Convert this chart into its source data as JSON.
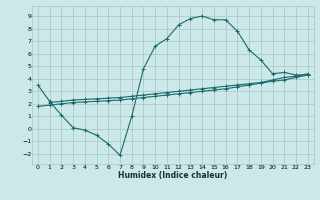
{
  "xlabel": "Humidex (Indice chaleur)",
  "bg_color": "#cce8e8",
  "grid_color": "#aacccc",
  "line_color": "#1a6b6b",
  "xlim": [
    -0.5,
    23.5
  ],
  "ylim": [
    -2.8,
    9.8
  ],
  "xticks": [
    0,
    1,
    2,
    3,
    4,
    5,
    6,
    7,
    8,
    9,
    10,
    11,
    12,
    13,
    14,
    15,
    16,
    17,
    18,
    19,
    20,
    21,
    22,
    23
  ],
  "yticks": [
    -2,
    -1,
    0,
    1,
    2,
    3,
    4,
    5,
    6,
    7,
    8,
    9
  ],
  "curve_x": [
    0,
    1,
    2,
    3,
    4,
    5,
    6,
    7,
    8,
    9,
    10,
    11,
    12,
    13,
    14,
    15,
    16,
    17,
    18,
    19,
    20,
    21,
    22,
    23
  ],
  "curve_y": [
    3.5,
    2.2,
    1.1,
    0.1,
    -0.1,
    -0.5,
    -1.2,
    -2.1,
    1.0,
    4.8,
    6.6,
    7.2,
    8.3,
    8.8,
    9.0,
    8.7,
    8.7,
    7.8,
    6.3,
    5.5,
    4.4,
    4.5,
    4.3,
    4.3
  ],
  "line1_x": [
    1,
    2,
    3,
    4,
    5,
    6,
    7,
    8,
    9,
    10,
    11,
    12,
    13,
    14,
    15,
    16,
    17,
    18,
    19,
    20,
    21,
    22,
    23
  ],
  "line1_y": [
    2.1,
    2.2,
    2.3,
    2.35,
    2.4,
    2.45,
    2.5,
    2.6,
    2.7,
    2.8,
    2.9,
    3.0,
    3.1,
    3.2,
    3.3,
    3.4,
    3.5,
    3.6,
    3.7,
    3.9,
    4.1,
    4.2,
    4.4
  ],
  "line2_x": [
    0,
    1,
    2,
    3,
    4,
    5,
    6,
    7,
    8,
    9,
    10,
    11,
    12,
    13,
    14,
    15,
    16,
    17,
    18,
    19,
    20,
    21,
    22,
    23
  ],
  "line2_y": [
    1.8,
    1.9,
    2.0,
    2.1,
    2.15,
    2.2,
    2.25,
    2.3,
    2.4,
    2.5,
    2.6,
    2.7,
    2.8,
    2.9,
    3.0,
    3.1,
    3.2,
    3.35,
    3.5,
    3.65,
    3.8,
    3.9,
    4.1,
    4.3
  ]
}
